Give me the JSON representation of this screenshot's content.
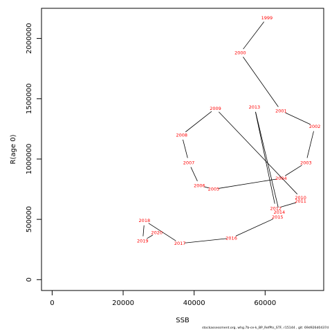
{
  "chart_data": {
    "type": "line",
    "xlabel": "SSB",
    "ylabel": "R(age 0)",
    "xlim": [
      -3000,
      76500
    ],
    "ylim": [
      -90000,
      2250000
    ],
    "x_ticks": [
      0,
      20000,
      40000,
      60000
    ],
    "y_ticks": [
      0,
      500000,
      1000000,
      1500000,
      2000000
    ],
    "grid": false,
    "label_color": "#ff0000",
    "line_color": "#000000",
    "points": [
      {
        "year": "1999",
        "x": 60500,
        "y": 2170000
      },
      {
        "year": "2000",
        "x": 53000,
        "y": 1880000
      },
      {
        "year": "2001",
        "x": 64500,
        "y": 1400000
      },
      {
        "year": "2002",
        "x": 74000,
        "y": 1270000
      },
      {
        "year": "2003",
        "x": 71500,
        "y": 970000
      },
      {
        "year": "2004",
        "x": 64500,
        "y": 840000
      },
      {
        "year": "2005",
        "x": 45500,
        "y": 750000
      },
      {
        "year": "2006",
        "x": 41500,
        "y": 780000
      },
      {
        "year": "2007",
        "x": 38500,
        "y": 970000
      },
      {
        "year": "2008",
        "x": 36500,
        "y": 1200000
      },
      {
        "year": "2009",
        "x": 46000,
        "y": 1420000
      },
      {
        "year": "2010",
        "x": 70000,
        "y": 680000
      },
      {
        "year": "2011",
        "x": 70000,
        "y": 650000
      },
      {
        "year": "2012",
        "x": 63000,
        "y": 590000
      },
      {
        "year": "2013",
        "x": 57000,
        "y": 1430000
      },
      {
        "year": "2014",
        "x": 64000,
        "y": 560000
      },
      {
        "year": "2015",
        "x": 63500,
        "y": 520000
      },
      {
        "year": "2016",
        "x": 50500,
        "y": 345000
      },
      {
        "year": "2017",
        "x": 36000,
        "y": 300000
      },
      {
        "year": "2018",
        "x": 26000,
        "y": 490000
      },
      {
        "year": "2019",
        "x": 25500,
        "y": 320000
      },
      {
        "year": "2020",
        "x": 29500,
        "y": 390000
      }
    ]
  },
  "footer": {
    "text": "stockassessment.org, whg.7b-ce-k_BP_RefPts_STF, r15144 , git: 69d926d0437d"
  }
}
